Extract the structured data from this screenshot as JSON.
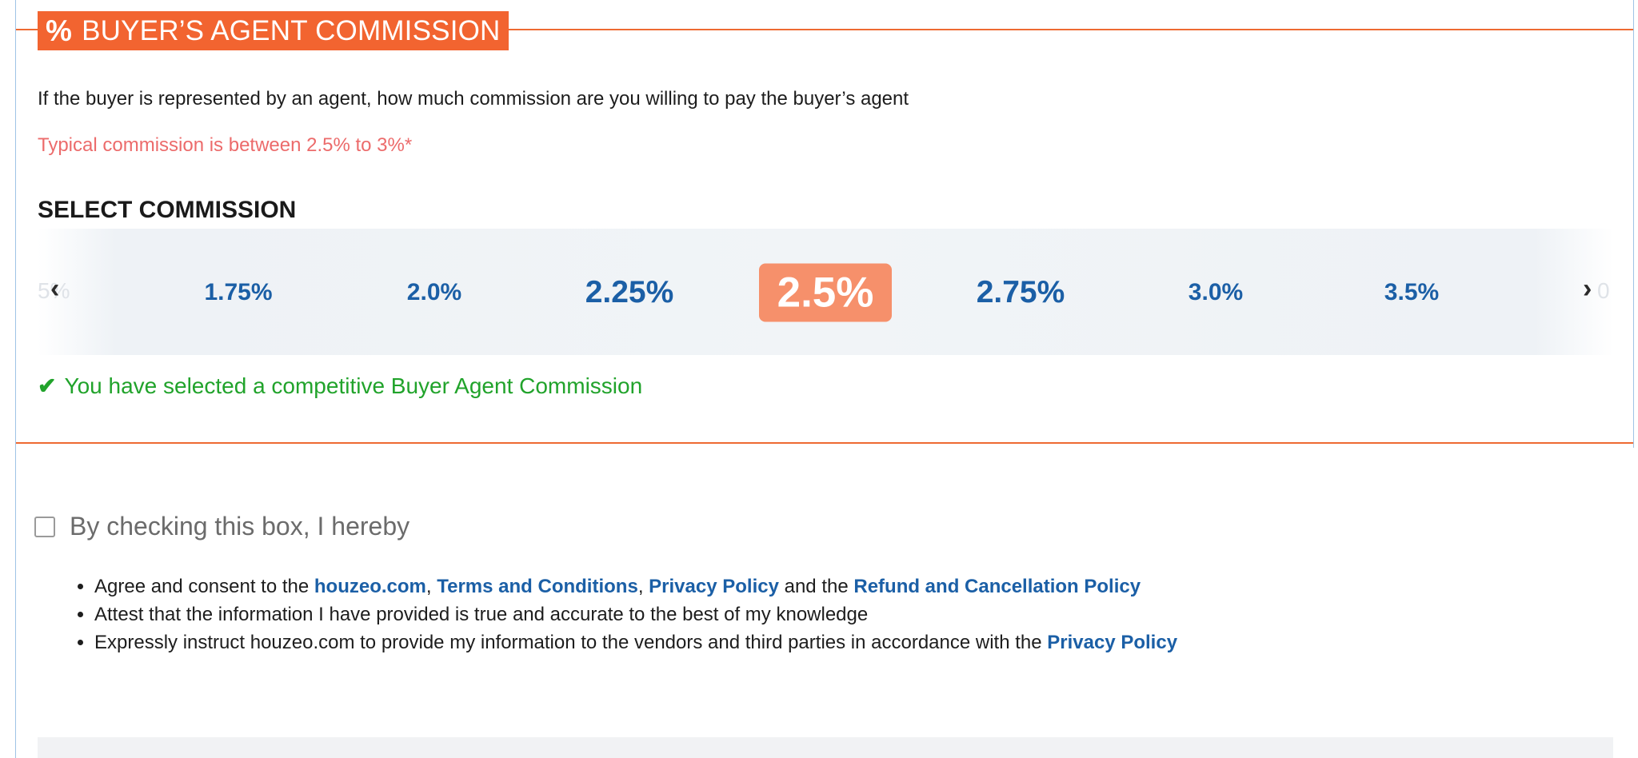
{
  "section": {
    "icon": "percent-icon",
    "icon_glyph": "%",
    "title": "BUYER’S AGENT COMMISSION"
  },
  "description": "If the buyer is represented by an agent, how much commission are you willing to pay the buyer’s agent",
  "typical_note": "Typical commission is between 2.5% to 3%*",
  "select_title": "SELECT COMMISSION",
  "slider": {
    "prev_glyph": "‹",
    "next_glyph": "›",
    "ghost_left": "5%",
    "ghost_right": "0",
    "options": [
      "1.75%",
      "2.0%",
      "2.25%",
      "2.5%",
      "2.75%",
      "3.0%",
      "3.5%"
    ],
    "selected": "2.5%"
  },
  "confirmation": {
    "icon": "check-icon",
    "icon_glyph": "✔",
    "text": "You have selected a competitive Buyer Agent Commission"
  },
  "consent": {
    "checked": false,
    "label": "By checking this box, I hereby"
  },
  "terms": {
    "item1": {
      "prefix": "Agree and consent to the ",
      "link1": "houzeo.com",
      "sep1": ", ",
      "link2": "Terms and Conditions",
      "sep2": ", ",
      "link3": "Privacy Policy",
      "mid": " and the ",
      "link4": "Refund and Cancellation Policy"
    },
    "item2": "Attest that the information I have provided is true and accurate to the best of my knowledge",
    "item3": {
      "prefix": "Expressly instruct houzeo.com to provide my information to the vendors and third parties in accordance with the ",
      "link": "Privacy Policy"
    }
  },
  "colors": {
    "accent_orange": "#f26430",
    "selected_bg": "#f6906b",
    "option_blue": "#1b5fa6",
    "success_green": "#21a32b",
    "note_red": "#ec6b6b"
  }
}
